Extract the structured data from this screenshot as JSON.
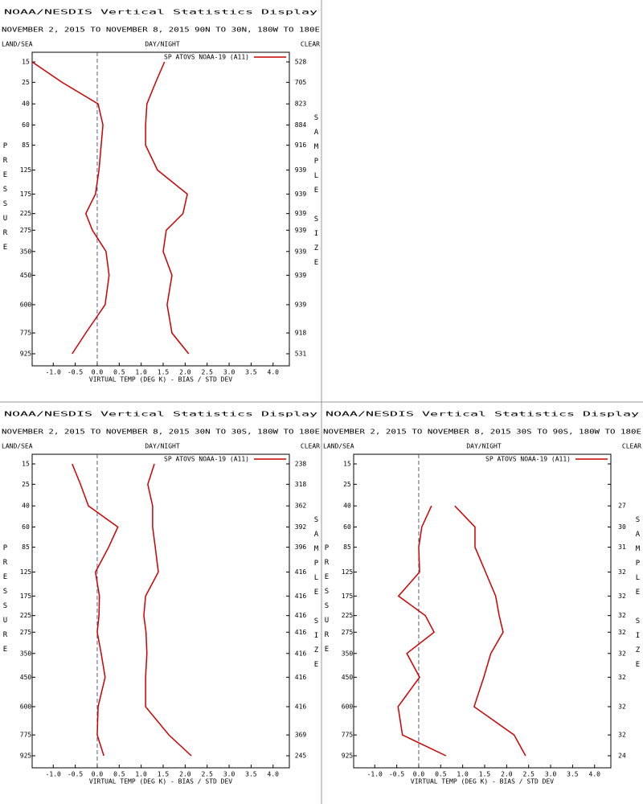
{
  "chart_data": [
    {
      "type": "line",
      "title": "NOAA/NESDIS Vertical Statistics Display",
      "subtitle": "NOVEMBER 2, 2015 TO NOVEMBER 8, 2015  90N TO 30N, 180W TO 180E",
      "left_label": "LAND/SEA",
      "center_label": "DAY/NIGHT",
      "right_label": "CLEAR",
      "ylabel": "PRESSURE",
      "y2label": "SAMPLE SIZE",
      "xlabel": "VIRTUAL TEMP (DEG K) - BIAS / STD DEV",
      "y": [
        15,
        25,
        40,
        60,
        85,
        125,
        175,
        225,
        275,
        350,
        450,
        600,
        775,
        925
      ],
      "sample_size": [
        528,
        705,
        823,
        884,
        916,
        939,
        939,
        939,
        939,
        939,
        939,
        939,
        918,
        531
      ],
      "series": [
        {
          "name": "SP ATOVS NOAA-19 (A11)",
          "color": "#cc0000",
          "values": [
            -1.48,
            -0.8,
            0.02,
            0.13,
            0.09,
            0.04,
            -0.04,
            -0.26,
            -0.11,
            0.2,
            0.27,
            0.18,
            -0.26,
            -0.57
          ]
        },
        {
          "color": "#cc0000",
          "values": [
            1.53,
            1.33,
            1.13,
            1.1,
            1.1,
            1.37,
            2.05,
            1.95,
            1.57,
            1.5,
            1.7,
            1.59,
            1.7,
            2.08
          ]
        }
      ],
      "xlim": [
        -1.48,
        4.37
      ],
      "xticks": [
        {
          "value": -1,
          "label": "-1.0"
        },
        {
          "value": -0.5,
          "label": "-0.5"
        },
        {
          "value": 0,
          "label": "0.0"
        },
        {
          "value": 0.5,
          "label": "0.5"
        },
        {
          "value": 1,
          "label": "1.0"
        },
        {
          "value": 1.5,
          "label": "1.5"
        },
        {
          "value": 2,
          "label": "2.0"
        },
        {
          "value": 2.5,
          "label": "2.5"
        },
        {
          "value": 3,
          "label": "3.0"
        },
        {
          "value": 3.5,
          "label": "3.5"
        },
        {
          "value": 4,
          "label": "4.0"
        }
      ]
    },
    {
      "type": "line",
      "title": "NOAA/NESDIS Vertical Statistics Display",
      "subtitle": "NOVEMBER 2, 2015 TO NOVEMBER 8, 2015  30N TO 30S, 180W TO 180E",
      "left_label": "LAND/SEA",
      "center_label": "DAY/NIGHT",
      "right_label": "CLEAR",
      "ylabel": "PRESSURE",
      "y2label": "SAMPLE SIZE",
      "xlabel": "VIRTUAL TEMP (DEG K) - BIAS / STD DEV",
      "y": [
        15,
        25,
        40,
        60,
        85,
        125,
        175,
        225,
        275,
        350,
        450,
        600,
        775,
        925
      ],
      "sample_size": [
        238,
        318,
        362,
        392,
        396,
        416,
        416,
        416,
        416,
        416,
        416,
        416,
        369,
        245
      ],
      "series": [
        {
          "name": "SP ATOVS NOAA-19 (A11)",
          "color": "#cc0000",
          "values": [
            -0.57,
            -0.38,
            -0.2,
            0.47,
            0.26,
            -0.04,
            0.05,
            0.04,
            0,
            0.09,
            0.18,
            0.02,
            0,
            0.15
          ]
        },
        {
          "color": "#cc0000",
          "values": [
            1.3,
            1.15,
            1.26,
            1.26,
            1.32,
            1.39,
            1.1,
            1.06,
            1.11,
            1.13,
            1.1,
            1.1,
            1.63,
            2.14
          ]
        }
      ],
      "xlim": [
        -1.48,
        4.37
      ],
      "xticks": [
        {
          "value": -1,
          "label": "-1.0"
        },
        {
          "value": -0.5,
          "label": "-0.5"
        },
        {
          "value": 0,
          "label": "0.0"
        },
        {
          "value": 0.5,
          "label": "0.5"
        },
        {
          "value": 1,
          "label": "1.0"
        },
        {
          "value": 1.5,
          "label": "1.5"
        },
        {
          "value": 2,
          "label": "2.0"
        },
        {
          "value": 2.5,
          "label": "2.5"
        },
        {
          "value": 3,
          "label": "3.0"
        },
        {
          "value": 3.5,
          "label": "3.5"
        },
        {
          "value": 4,
          "label": "4.0"
        }
      ]
    },
    {
      "type": "line",
      "title": "NOAA/NESDIS Vertical Statistics Display",
      "subtitle": "NOVEMBER 2, 2015 TO NOVEMBER 8, 2015  30S TO 90S, 180W TO 180E",
      "left_label": "LAND/SEA",
      "center_label": "DAY/NIGHT",
      "right_label": "CLEAR",
      "ylabel": "PRESSURE",
      "y2label": "SAMPLE SIZE",
      "xlabel": "VIRTUAL TEMP (DEG K) - BIAS / STD DEV",
      "y": [
        15,
        25,
        40,
        60,
        85,
        125,
        175,
        225,
        275,
        350,
        450,
        600,
        775,
        925
      ],
      "sample_size": [
        null,
        null,
        27,
        30,
        31,
        32,
        32,
        32,
        32,
        32,
        32,
        32,
        32,
        24
      ],
      "series": [
        {
          "name": "SP ATOVS NOAA-19 (A11)",
          "color": "#cc0000",
          "values": [
            null,
            null,
            0.29,
            0.07,
            0,
            0.02,
            -0.46,
            0.15,
            0.35,
            -0.27,
            0.02,
            -0.47,
            -0.37,
            0.62
          ]
        },
        {
          "color": "#cc0000",
          "values": [
            null,
            null,
            0.82,
            1.28,
            1.28,
            1.52,
            1.75,
            1.83,
            1.92,
            1.64,
            1.48,
            1.26,
            2.17,
            2.43
          ]
        }
      ],
      "xlim": [
        -1.48,
        4.37
      ],
      "xticks": [
        {
          "value": -1,
          "label": "-1.0"
        },
        {
          "value": -0.5,
          "label": "-0.5"
        },
        {
          "value": 0,
          "label": "0.0"
        },
        {
          "value": 0.5,
          "label": "0.5"
        },
        {
          "value": 1,
          "label": "1.0"
        },
        {
          "value": 1.5,
          "label": "1.5"
        },
        {
          "value": 2,
          "label": "2.0"
        },
        {
          "value": 2.5,
          "label": "2.5"
        },
        {
          "value": 3,
          "label": "3.0"
        },
        {
          "value": 3.5,
          "label": "3.5"
        },
        {
          "value": 4,
          "label": "4.0"
        }
      ]
    }
  ]
}
